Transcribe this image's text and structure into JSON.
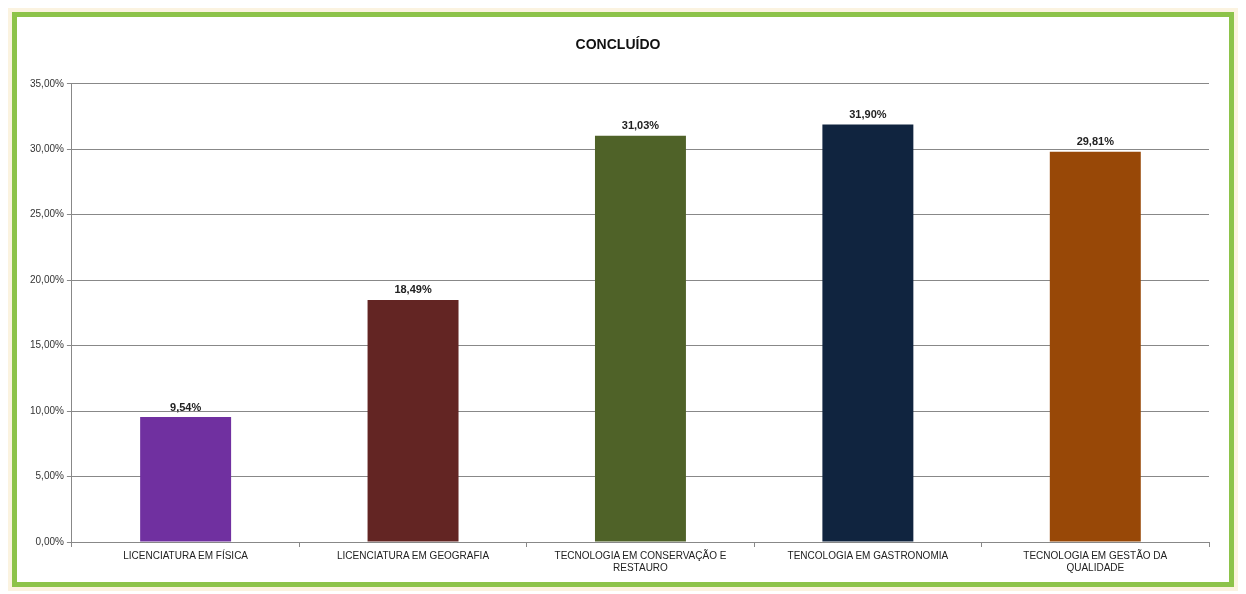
{
  "chart_data": {
    "type": "bar",
    "title": "CONCLUÍDO",
    "categories": [
      "LICENCIATURA EM FÍSICA",
      "LICENCIATURA EM GEOGRAFIA",
      "TECNOLOGIA EM CONSERVAÇÃO E RESTAURO",
      "TENCOLOGIA EM GASTRONOMIA",
      "TECNOLOGIA EM GESTÃO DA QUALIDADE"
    ],
    "values": [
      9.54,
      18.49,
      31.03,
      31.9,
      29.81
    ],
    "value_labels": [
      "9,54%",
      "18,49%",
      "31,03%",
      "31,90%",
      "29,81%"
    ],
    "colors": [
      "#7030a0",
      "#632523",
      "#4f6228",
      "#10243f",
      "#984807"
    ],
    "ylim": [
      0,
      35
    ],
    "yticks": [
      {
        "value": 0,
        "label": "0,00%"
      },
      {
        "value": 5,
        "label": "5,00%"
      },
      {
        "value": 10,
        "label": "10,00%"
      },
      {
        "value": 15,
        "label": "15,00%"
      },
      {
        "value": 20,
        "label": "20,00%"
      },
      {
        "value": 25,
        "label": "25,00%"
      },
      {
        "value": 30,
        "label": "30,00%"
      },
      {
        "value": 35,
        "label": "35,00%"
      }
    ],
    "grid": "y",
    "legend": false
  }
}
